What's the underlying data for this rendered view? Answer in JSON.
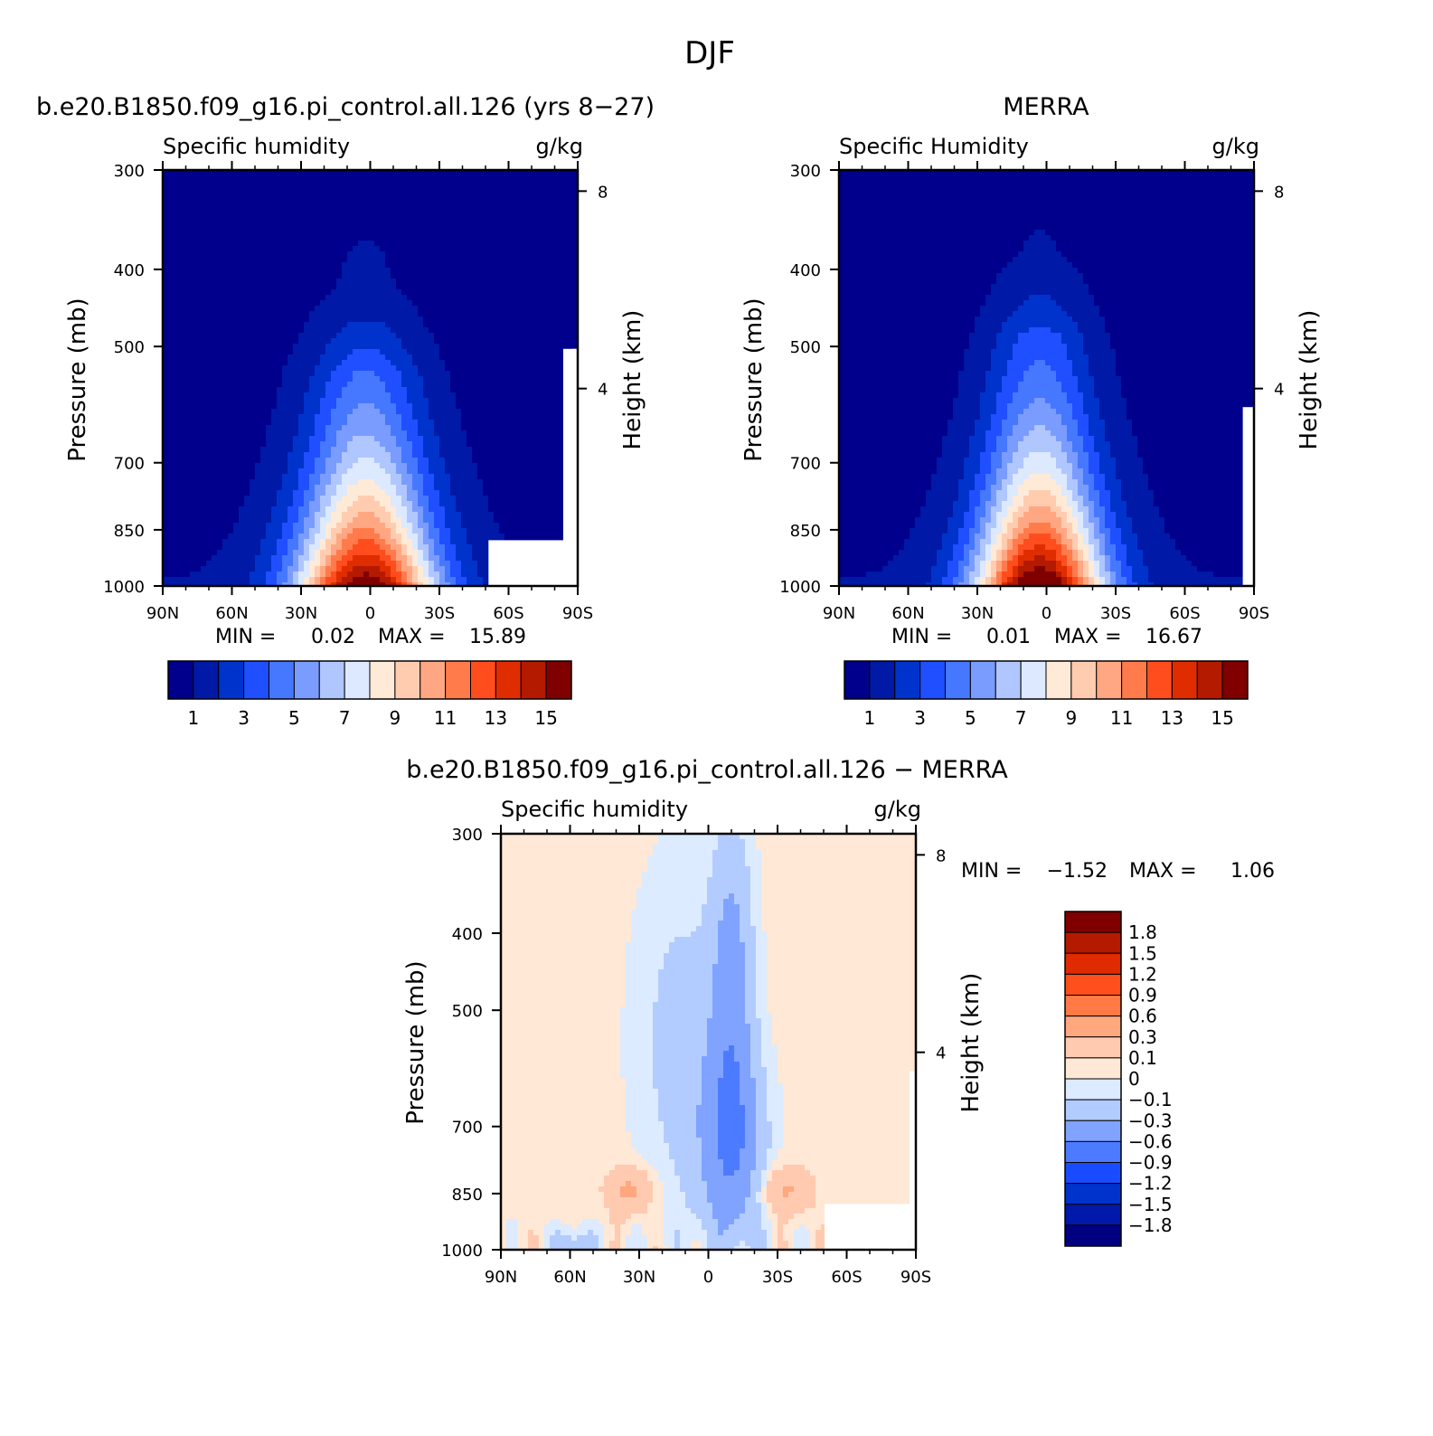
{
  "figure": {
    "title": "DJF"
  },
  "panels": {
    "model": {
      "title": "b.e20.B1850.f09_g16.pi_control.all.126 (yrs 8-27)"
    },
    "obs": {
      "title": "MERRA"
    },
    "diff": {
      "title": "b.e20.B1850.f09_g16.pi_control.all.126 - MERRA"
    }
  },
  "colors": {
    "abs_levels": [
      "#00008c",
      "#0019a6",
      "#0033cc",
      "#1f4fff",
      "#4677ff",
      "#7a9cff",
      "#b0c6ff",
      "#dce9ff",
      "#ffead7",
      "#ffccb0",
      "#ffa783",
      "#ff7b4c",
      "#ff4d1e",
      "#e02d00",
      "#b31a00",
      "#800000"
    ],
    "diff_levels": [
      "#000080",
      "#0019aa",
      "#0033cc",
      "#1a4cff",
      "#4d7bff",
      "#80a3ff",
      "#b3ccff",
      "#dcebff",
      "#ffe8d6",
      "#ffcab0",
      "#ffa77f",
      "#ff7a45",
      "#ff4f1c",
      "#e02a00",
      "#b31a00",
      "#800000"
    ]
  },
  "chart_data": [
    {
      "type": "contour",
      "title": "b.e20.B1850.f09_g16.pi_control.all.126 (yrs 8-27)",
      "subtitle_left": "Specific humidity",
      "units": "g/kg",
      "ylabel": "Pressure (mb)",
      "ylabel_right": "Height (km)",
      "x_ticks": [
        "90N",
        "60N",
        "30N",
        "0",
        "30S",
        "60S",
        "90S"
      ],
      "y_ticks": [
        "300",
        "400",
        "500",
        "700",
        "850",
        "1000"
      ],
      "y_ticks_right": [
        "8",
        "4"
      ],
      "ylim": [
        1000,
        300
      ],
      "y_scale": "log-pressure",
      "min_label": "MIN =",
      "min_value": "0.02",
      "max_label": "MAX =",
      "max_value": "15.89",
      "min": 0.02,
      "max": 15.89,
      "peak_lat": 2,
      "peak_halfwidth": 30,
      "moist_top_p": 420,
      "colorbar_labels": [
        "1",
        "3",
        "5",
        "7",
        "9",
        "11",
        "13",
        "15"
      ]
    },
    {
      "type": "contour",
      "title": "MERRA",
      "subtitle_left": "Specific Humidity",
      "units": "g/kg",
      "ylabel": "Pressure (mb)",
      "ylabel_right": "Height (km)",
      "x_ticks": [
        "90N",
        "60N",
        "30N",
        "0",
        "30S",
        "60S",
        "90S"
      ],
      "y_ticks": [
        "300",
        "400",
        "500",
        "700",
        "850",
        "1000"
      ],
      "y_ticks_right": [
        "8",
        "4"
      ],
      "ylim": [
        1000,
        300
      ],
      "y_scale": "log-pressure",
      "min_label": "MIN =",
      "min_value": "0.01",
      "max_label": "MAX =",
      "max_value": "16.67",
      "min": 0.01,
      "max": 16.67,
      "peak_lat": 3,
      "peak_halfwidth": 28,
      "moist_top_p": 380,
      "colorbar_labels": [
        "1",
        "3",
        "5",
        "7",
        "9",
        "11",
        "13",
        "15"
      ]
    },
    {
      "type": "contour",
      "title": "b.e20.B1850.f09_g16.pi_control.all.126 - MERRA",
      "subtitle_left": "Specific humidity",
      "units": "g/kg",
      "ylabel": "Pressure (mb)",
      "ylabel_right": "Height (km)",
      "x_ticks": [
        "90N",
        "60N",
        "30N",
        "0",
        "30S",
        "60S",
        "90S"
      ],
      "y_ticks": [
        "300",
        "400",
        "500",
        "700",
        "850",
        "1000"
      ],
      "y_ticks_right": [
        "8",
        "4"
      ],
      "ylim": [
        1000,
        300
      ],
      "y_scale": "log-pressure",
      "min_label": "MIN =",
      "min_value": "-1.52",
      "max_label": "MAX =",
      "max_value": "1.06",
      "min": -1.52,
      "max": 1.06,
      "colorbar_labels": [
        "1.8",
        "1.5",
        "1.2",
        "0.9",
        "0.6",
        "0.3",
        "0.1",
        "0",
        "-0.1",
        "-0.3",
        "-0.6",
        "-0.9",
        "-1.2",
        "-1.5",
        "-1.8"
      ]
    }
  ]
}
